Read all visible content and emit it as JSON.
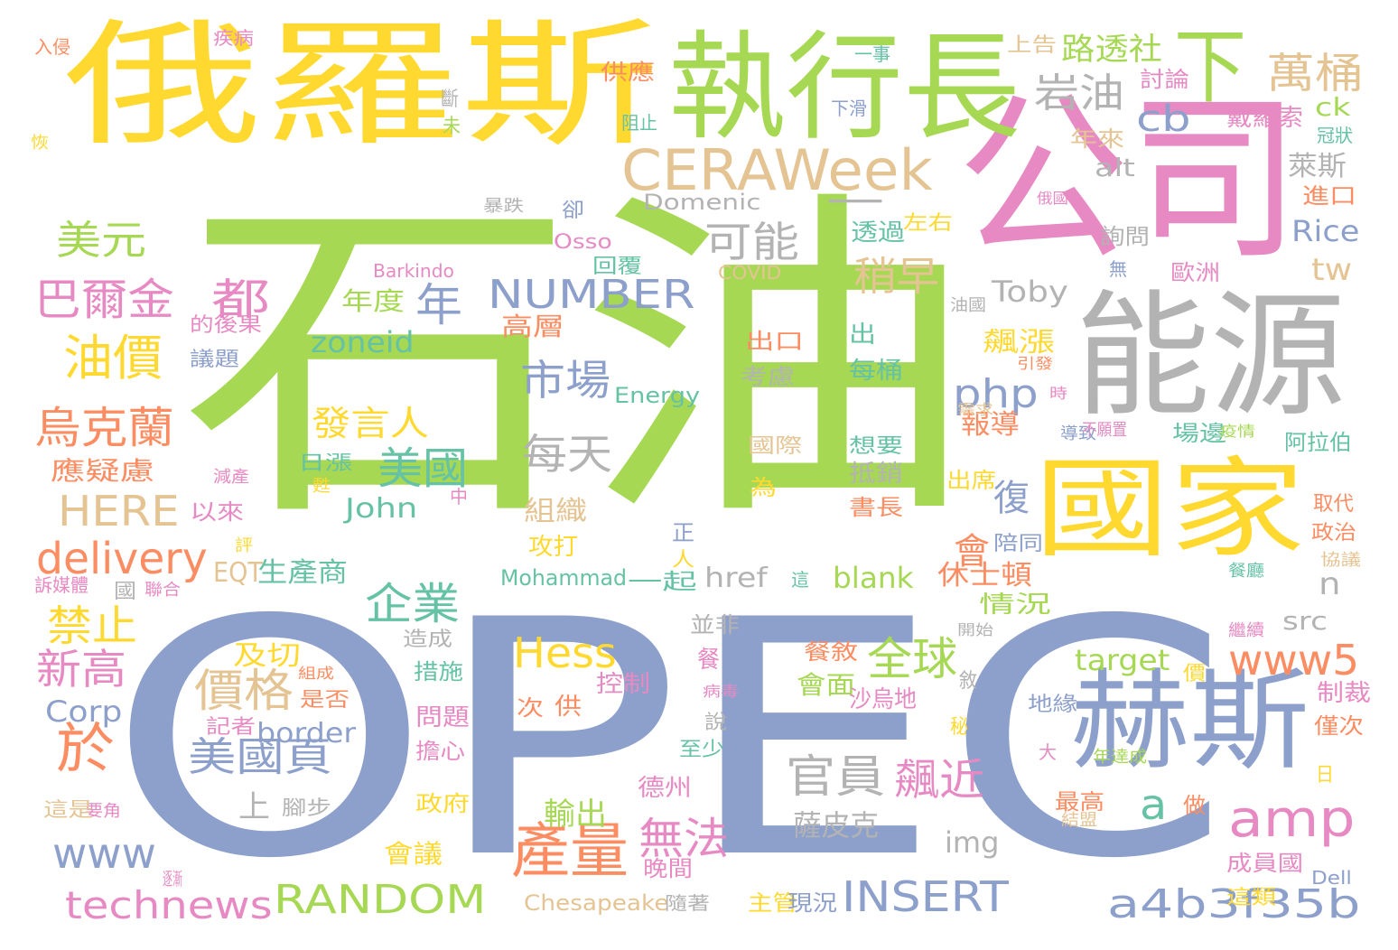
{
  "palette": {
    "green": "#a6d854",
    "blue": "#8da0cb",
    "yellow": "#ffd92f",
    "pink": "#e78ac3",
    "gray": "#b3b3b3",
    "orange": "#fc8d62",
    "tan": "#e5c494",
    "teal": "#66c2a5"
  },
  "words": [
    {
      "text": "石油",
      "color": "green"
    },
    {
      "text": "OPEC",
      "color": "blue"
    },
    {
      "text": "俄羅斯",
      "color": "yellow"
    },
    {
      "text": "公司",
      "color": "pink"
    },
    {
      "text": "執行長",
      "color": "green"
    },
    {
      "text": "能源",
      "color": "gray"
    },
    {
      "text": "國家",
      "color": "yellow"
    },
    {
      "text": "赫斯",
      "color": "blue"
    },
    {
      "text": "下",
      "color": "green"
    },
    {
      "text": "CERAWeek",
      "color": "tan"
    },
    {
      "text": "一",
      "color": "gray"
    },
    {
      "text": "岩油",
      "color": "gray"
    },
    {
      "text": "萬桶",
      "color": "tan"
    },
    {
      "text": "路透社",
      "color": "green"
    },
    {
      "text": "cb",
      "color": "blue"
    },
    {
      "text": "美元",
      "color": "green"
    },
    {
      "text": "巴爾金",
      "color": "pink"
    },
    {
      "text": "都",
      "color": "pink"
    },
    {
      "text": "年",
      "color": "blue"
    },
    {
      "text": "油價",
      "color": "yellow"
    },
    {
      "text": "烏克蘭",
      "color": "orange"
    },
    {
      "text": "可能",
      "color": "gray"
    },
    {
      "text": "NUMBER",
      "color": "blue"
    },
    {
      "text": "稍早",
      "color": "tan"
    },
    {
      "text": "市場",
      "color": "blue"
    },
    {
      "text": "php",
      "color": "blue"
    },
    {
      "text": "tw",
      "color": "tan"
    },
    {
      "text": "發言人",
      "color": "yellow"
    },
    {
      "text": "美國",
      "color": "teal"
    },
    {
      "text": "每天",
      "color": "gray"
    },
    {
      "text": "HERE",
      "color": "tan"
    },
    {
      "text": "delivery",
      "color": "orange"
    },
    {
      "text": "應疑慮",
      "color": "orange"
    },
    {
      "text": "禁止",
      "color": "yellow"
    },
    {
      "text": "企業",
      "color": "teal"
    },
    {
      "text": "新高",
      "color": "pink"
    },
    {
      "text": "於",
      "color": "orange"
    },
    {
      "text": "價格",
      "color": "tan"
    },
    {
      "text": "美國頁",
      "color": "blue"
    },
    {
      "text": "Hess",
      "color": "yellow"
    },
    {
      "text": "全球",
      "color": "green"
    },
    {
      "text": "www5",
      "color": "orange"
    },
    {
      "text": "amp",
      "color": "pink"
    },
    {
      "text": "官員",
      "color": "gray"
    },
    {
      "text": "飆近",
      "color": "pink"
    },
    {
      "text": "產量",
      "color": "orange"
    },
    {
      "text": "無法",
      "color": "pink"
    },
    {
      "text": "www",
      "color": "blue"
    },
    {
      "text": "technews",
      "color": "pink"
    },
    {
      "text": "RANDOM",
      "color": "green"
    },
    {
      "text": "INSERT",
      "color": "blue"
    },
    {
      "text": "a4b3f35b",
      "color": "blue"
    },
    {
      "text": "a",
      "color": "teal"
    },
    {
      "text": "n",
      "color": "gray"
    },
    {
      "text": "復",
      "color": "blue"
    },
    {
      "text": "會",
      "color": "orange"
    },
    {
      "text": "zoneid",
      "color": "teal"
    },
    {
      "text": "Toby",
      "color": "gray"
    },
    {
      "text": "Rice",
      "color": "blue"
    },
    {
      "text": "alt",
      "color": "gray"
    },
    {
      "text": "萊斯",
      "color": "gray"
    },
    {
      "text": "ck",
      "color": "green"
    },
    {
      "text": "target",
      "color": "green"
    },
    {
      "text": "border",
      "color": "blue"
    },
    {
      "text": "Corp",
      "color": "blue"
    },
    {
      "text": "John",
      "color": "teal"
    },
    {
      "text": "blank",
      "color": "green"
    },
    {
      "text": "href",
      "color": "gray"
    },
    {
      "text": "EQT",
      "color": "tan"
    },
    {
      "text": "生產商",
      "color": "teal"
    },
    {
      "text": "休士頓",
      "color": "orange"
    },
    {
      "text": "src",
      "color": "gray"
    },
    {
      "text": "img",
      "color": "gray"
    },
    {
      "text": "Mohammad",
      "color": "teal"
    },
    {
      "text": "一起",
      "color": "teal"
    },
    {
      "text": "Chesapeake",
      "color": "tan"
    },
    {
      "text": "Domenic",
      "color": "gray"
    },
    {
      "text": "Barkindo",
      "color": "pink"
    },
    {
      "text": "COVID",
      "color": "tan"
    },
    {
      "text": "Energy",
      "color": "teal"
    },
    {
      "text": "Osso",
      "color": "pink"
    },
    {
      "text": "Dell",
      "color": "blue"
    },
    {
      "text": "高層",
      "color": "orange"
    },
    {
      "text": "年度",
      "color": "green"
    },
    {
      "text": "飆漲",
      "color": "yellow"
    },
    {
      "text": "報導",
      "color": "orange"
    },
    {
      "text": "出口",
      "color": "orange"
    },
    {
      "text": "出",
      "color": "teal"
    },
    {
      "text": "每桶",
      "color": "teal"
    },
    {
      "text": "考慮",
      "color": "gray"
    },
    {
      "text": "國際",
      "color": "tan"
    },
    {
      "text": "想要",
      "color": "teal"
    },
    {
      "text": "抵銷",
      "color": "gray"
    },
    {
      "text": "書長",
      "color": "orange"
    },
    {
      "text": "為",
      "color": "yellow"
    },
    {
      "text": "日漲",
      "color": "teal"
    },
    {
      "text": "以來",
      "color": "pink"
    },
    {
      "text": "組織",
      "color": "tan"
    },
    {
      "text": "攻打",
      "color": "yellow"
    },
    {
      "text": "及切",
      "color": "yellow"
    },
    {
      "text": "措施",
      "color": "teal"
    },
    {
      "text": "問題",
      "color": "pink"
    },
    {
      "text": "擔心",
      "color": "pink"
    },
    {
      "text": "政府",
      "color": "yellow"
    },
    {
      "text": "輸出",
      "color": "green"
    },
    {
      "text": "德州",
      "color": "pink"
    },
    {
      "text": "晚間",
      "color": "pink"
    },
    {
      "text": "會議",
      "color": "yellow"
    },
    {
      "text": "主管",
      "color": "yellow"
    },
    {
      "text": "現況",
      "color": "blue"
    },
    {
      "text": "薩皮克",
      "color": "gray"
    },
    {
      "text": "會面",
      "color": "green"
    },
    {
      "text": "餐敘",
      "color": "orange"
    },
    {
      "text": "沙烏地",
      "color": "pink"
    },
    {
      "text": "控制",
      "color": "pink"
    },
    {
      "text": "至少",
      "color": "teal"
    },
    {
      "text": "造成",
      "color": "gray"
    },
    {
      "text": "是否",
      "color": "orange"
    },
    {
      "text": "記者",
      "color": "pink"
    },
    {
      "text": "組成",
      "color": "orange"
    },
    {
      "text": "腳步",
      "color": "gray"
    },
    {
      "text": "上",
      "color": "gray"
    },
    {
      "text": "要角",
      "color": "pink"
    },
    {
      "text": "這是",
      "color": "tan"
    },
    {
      "text": "逐漸",
      "color": "pink"
    },
    {
      "text": "隨著",
      "color": "gray"
    },
    {
      "text": "供應",
      "color": "orange"
    },
    {
      "text": "阻止",
      "color": "teal"
    },
    {
      "text": "討論",
      "color": "pink"
    },
    {
      "text": "戴羅索",
      "color": "pink"
    },
    {
      "text": "上告",
      "color": "tan"
    },
    {
      "text": "年來",
      "color": "tan"
    },
    {
      "text": "進口",
      "color": "orange"
    },
    {
      "text": "詢問",
      "color": "gray"
    },
    {
      "text": "歐洲",
      "color": "pink"
    },
    {
      "text": "冠狀",
      "color": "teal"
    },
    {
      "text": "透過",
      "color": "teal"
    },
    {
      "text": "左右",
      "color": "yellow"
    },
    {
      "text": "回覆",
      "color": "teal"
    },
    {
      "text": "卻",
      "color": "blue"
    },
    {
      "text": "暴跌",
      "color": "gray"
    },
    {
      "text": "的後果",
      "color": "pink"
    },
    {
      "text": "議題",
      "color": "blue"
    },
    {
      "text": "減產",
      "color": "pink"
    },
    {
      "text": "並非",
      "color": "gray"
    },
    {
      "text": "次",
      "color": "orange"
    },
    {
      "text": "供",
      "color": "orange"
    },
    {
      "text": "陪同",
      "color": "blue"
    },
    {
      "text": "情況",
      "color": "green"
    },
    {
      "text": "場邊",
      "color": "teal"
    },
    {
      "text": "阿拉伯",
      "color": "teal"
    },
    {
      "text": "取代",
      "color": "orange"
    },
    {
      "text": "政治",
      "color": "orange"
    },
    {
      "text": "協議",
      "color": "tan"
    },
    {
      "text": "制裁",
      "color": "pink"
    },
    {
      "text": "僅次",
      "color": "orange"
    },
    {
      "text": "成員國",
      "color": "pink"
    },
    {
      "text": "這類",
      "color": "yellow"
    },
    {
      "text": "最高",
      "color": "orange"
    },
    {
      "text": "做",
      "color": "orange"
    },
    {
      "text": "大",
      "color": "pink"
    },
    {
      "text": "年達成",
      "color": "green"
    },
    {
      "text": "結盟",
      "color": "tan"
    },
    {
      "text": "出席",
      "color": "yellow"
    },
    {
      "text": "導致",
      "color": "blue"
    },
    {
      "text": "不願置",
      "color": "pink"
    },
    {
      "text": "疫情",
      "color": "green"
    },
    {
      "text": "需求",
      "color": "tan"
    },
    {
      "text": "引發",
      "color": "orange"
    },
    {
      "text": "時",
      "color": "pink"
    },
    {
      "text": "開始",
      "color": "gray"
    },
    {
      "text": "繼續",
      "color": "pink"
    },
    {
      "text": "餐廳",
      "color": "teal"
    },
    {
      "text": "地緣",
      "color": "blue"
    },
    {
      "text": "價",
      "color": "yellow"
    },
    {
      "text": "秘",
      "color": "yellow"
    },
    {
      "text": "敘",
      "color": "gray"
    },
    {
      "text": "說",
      "color": "gray"
    },
    {
      "text": "病毒",
      "color": "pink"
    },
    {
      "text": "日",
      "color": "yellow"
    },
    {
      "text": "餐",
      "color": "pink"
    },
    {
      "text": "正",
      "color": "blue"
    },
    {
      "text": "人",
      "color": "yellow"
    },
    {
      "text": "這",
      "color": "teal"
    },
    {
      "text": "評",
      "color": "yellow"
    },
    {
      "text": "訴媒體",
      "color": "pink"
    },
    {
      "text": "國",
      "color": "gray"
    },
    {
      "text": "聯合",
      "color": "pink"
    },
    {
      "text": "中",
      "color": "pink"
    },
    {
      "text": "甦",
      "color": "yellow"
    },
    {
      "text": "入侵",
      "color": "orange"
    },
    {
      "text": "疾病",
      "color": "pink"
    },
    {
      "text": "斷",
      "color": "gray"
    },
    {
      "text": "未",
      "color": "green"
    },
    {
      "text": "恢",
      "color": "yellow"
    },
    {
      "text": "一事",
      "color": "teal"
    },
    {
      "text": "下滑",
      "color": "blue"
    },
    {
      "text": "俄國",
      "color": "pink"
    },
    {
      "text": "無",
      "color": "blue"
    },
    {
      "text": "油國",
      "color": "gray"
    }
  ]
}
